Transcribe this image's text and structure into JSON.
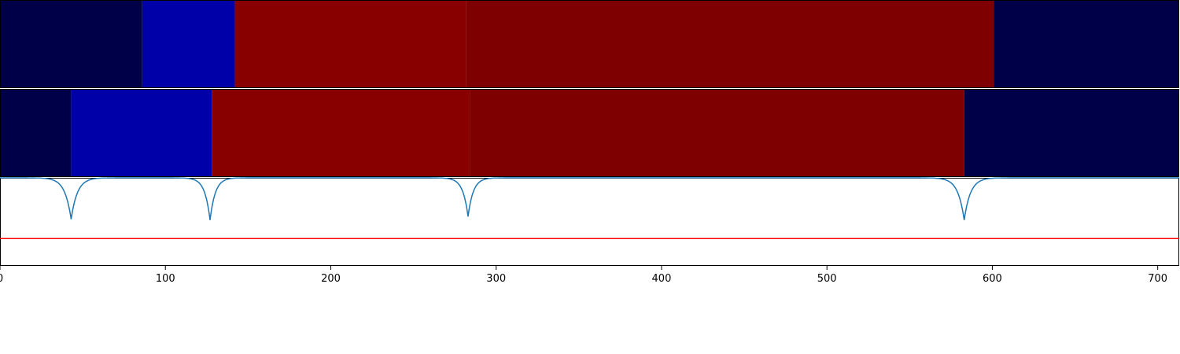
{
  "chart_data": [
    {
      "type": "heatmap",
      "title": "",
      "xlabel": "",
      "ylabel": "",
      "xlim": [
        0,
        713
      ],
      "segments": [
        {
          "start": 0,
          "end": 86,
          "color": "#000048"
        },
        {
          "start": 86,
          "end": 142,
          "color": "#0000a9"
        },
        {
          "start": 142,
          "end": 282,
          "color": "#880000"
        },
        {
          "start": 282,
          "end": 601,
          "color": "#7e0000"
        },
        {
          "start": 601,
          "end": 713,
          "color": "#000048"
        }
      ]
    },
    {
      "type": "heatmap",
      "title": "",
      "xlabel": "",
      "ylabel": "",
      "xlim": [
        0,
        713
      ],
      "segments": [
        {
          "start": 0,
          "end": 43,
          "color": "#000048"
        },
        {
          "start": 43,
          "end": 128,
          "color": "#0000a9"
        },
        {
          "start": 128,
          "end": 284,
          "color": "#880000"
        },
        {
          "start": 284,
          "end": 583,
          "color": "#7e0000"
        },
        {
          "start": 583,
          "end": 713,
          "color": "#000048"
        }
      ]
    },
    {
      "type": "line",
      "title": "",
      "xlabel": "",
      "ylabel": "",
      "xlim": [
        0,
        713
      ],
      "ylim": [
        0,
        1
      ],
      "x_ticks": [
        0,
        100,
        200,
        300,
        400,
        500,
        600,
        700
      ],
      "grid": false,
      "series": [
        {
          "color": "#1f77b4",
          "baseline": 1.0,
          "dips": [
            {
              "center": 43,
              "depth": 0.47,
              "width": 6
            },
            {
              "center": 127,
              "depth": 0.48,
              "width": 5
            },
            {
              "center": 283,
              "depth": 0.44,
              "width": 5
            },
            {
              "center": 583,
              "depth": 0.48,
              "width": 6
            }
          ]
        }
      ],
      "threshold": {
        "value": 0.31,
        "color": "#ff0000"
      }
    }
  ]
}
